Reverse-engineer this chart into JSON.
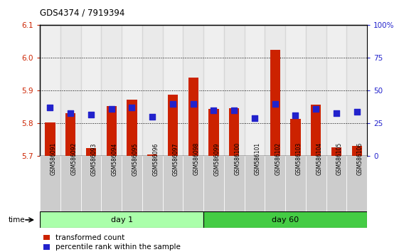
{
  "title": "GDS4374 / 7919394",
  "samples": [
    "GSM586091",
    "GSM586092",
    "GSM586093",
    "GSM586094",
    "GSM586095",
    "GSM586096",
    "GSM586097",
    "GSM586098",
    "GSM586099",
    "GSM586100",
    "GSM586101",
    "GSM586102",
    "GSM586103",
    "GSM586104",
    "GSM586105",
    "GSM586106"
  ],
  "red_values": [
    5.803,
    5.832,
    5.726,
    5.853,
    5.873,
    5.705,
    5.887,
    5.94,
    5.845,
    5.847,
    5.7,
    6.025,
    5.813,
    5.857,
    5.728,
    5.731
  ],
  "blue_values_pct": [
    37,
    33,
    32,
    36,
    37,
    30,
    40,
    40,
    35,
    35,
    29,
    40,
    31,
    36,
    33,
    34
  ],
  "ylim_left": [
    5.7,
    6.1
  ],
  "ylim_right": [
    0,
    100
  ],
  "yticks_left": [
    5.7,
    5.8,
    5.9,
    6.0,
    6.1
  ],
  "yticks_right": [
    0,
    25,
    50,
    75,
    100
  ],
  "ytick_labels_right": [
    "0",
    "25",
    "50",
    "75",
    "100%"
  ],
  "bar_color": "#cc2200",
  "dot_color": "#2222cc",
  "bar_width": 0.5,
  "dot_size": 35,
  "plot_bg_color": "#ffffff",
  "base_value": 5.7,
  "tick_color_left": "#cc2200",
  "tick_color_right": "#2222cc",
  "day1_color": "#aaffaa",
  "day60_color": "#44cc44",
  "col_bg_even": "#cccccc",
  "col_bg_odd": "#bbbbbb"
}
